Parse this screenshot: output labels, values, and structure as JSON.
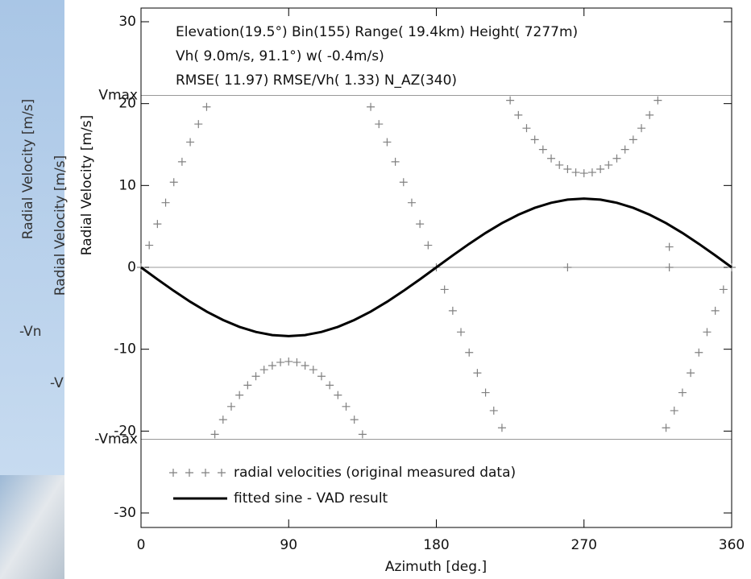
{
  "chart_data": {
    "type": "scatter",
    "xlabel": "Azimuth [deg.]",
    "ylabel": "Radial Velocity [m/s]",
    "annotations": [
      "Elevation(19.5°)  Bin(155)  Range( 19.4km)  Height( 7277m)",
      "Vh( 9.0m/s, 91.1°)  w( -0.4m/s)",
      "RMSE( 11.97) RMSE/Vh( 1.33) N_AZ(340)"
    ],
    "background_texts": [
      "Radial Velocity [m/s]",
      "Radial Velocity [m/s]",
      "-Vn",
      "-V"
    ],
    "reference_lines": [
      {
        "value": 21,
        "label": "Vmax"
      },
      {
        "value": -21,
        "label": "-Vmax"
      },
      {
        "value": 0
      }
    ],
    "xlim": [
      0,
      360
    ],
    "xticks": [
      0,
      90,
      180,
      270,
      360
    ],
    "ylim": [
      -30,
      30
    ],
    "yticks": [
      -30,
      -20,
      -10,
      0,
      10,
      20,
      30
    ],
    "legend": "lower left",
    "series": [
      {
        "name": "radial velocities (original measured data)",
        "color": "#808080",
        "marker": "plus",
        "x": [
          0,
          5,
          10,
          15,
          20,
          25,
          30,
          35,
          40,
          45,
          50,
          55,
          60,
          65,
          70,
          75,
          80,
          85,
          90,
          95,
          100,
          105,
          110,
          115,
          120,
          125,
          130,
          135,
          140,
          145,
          150,
          155,
          160,
          165,
          170,
          175,
          180,
          185,
          190,
          195,
          200,
          205,
          210,
          215,
          220,
          225,
          230,
          235,
          240,
          245,
          250,
          255,
          260,
          265,
          270,
          275,
          280,
          285,
          290,
          295,
          300,
          305,
          310,
          315,
          320,
          325,
          330,
          335,
          340,
          345,
          350,
          355,
          360,
          260,
          322,
          322
        ],
        "values": [
          0,
          2.7,
          5.3,
          7.9,
          10.4,
          12.9,
          15.3,
          17.5,
          19.6,
          -20.4,
          -18.6,
          -17.0,
          -15.6,
          -14.4,
          -13.3,
          -12.5,
          -12.0,
          -11.6,
          -11.5,
          -11.6,
          -12.0,
          -12.5,
          -13.3,
          -14.4,
          -15.6,
          -17.0,
          -18.6,
          -20.4,
          19.6,
          17.5,
          15.3,
          12.9,
          10.4,
          7.9,
          5.3,
          2.7,
          0,
          -2.7,
          -5.3,
          -7.9,
          -10.4,
          -12.9,
          -15.3,
          -17.5,
          -19.6,
          20.4,
          18.6,
          17.0,
          15.6,
          14.4,
          13.3,
          12.5,
          12.0,
          11.6,
          11.5,
          11.6,
          12.0,
          12.5,
          13.3,
          14.4,
          15.6,
          17.0,
          18.6,
          20.4,
          -19.6,
          -17.5,
          -15.3,
          -12.9,
          -10.4,
          -7.9,
          -5.3,
          -2.7,
          0,
          0,
          2.5,
          0
        ]
      },
      {
        "name": "fitted sine - VAD result",
        "color": "#000000",
        "marker": "line",
        "x": [
          0,
          10,
          20,
          30,
          40,
          50,
          60,
          70,
          80,
          90,
          100,
          110,
          120,
          130,
          140,
          150,
          160,
          170,
          180,
          190,
          200,
          210,
          220,
          230,
          240,
          250,
          260,
          270,
          280,
          290,
          300,
          310,
          320,
          330,
          340,
          350,
          360
        ],
        "values": [
          0,
          -1.46,
          -2.87,
          -4.2,
          -5.4,
          -6.43,
          -7.27,
          -7.89,
          -8.27,
          -8.4,
          -8.27,
          -7.89,
          -7.27,
          -6.43,
          -5.4,
          -4.2,
          -2.87,
          -1.46,
          0,
          1.46,
          2.87,
          4.2,
          5.4,
          6.43,
          7.27,
          7.89,
          8.27,
          8.4,
          8.27,
          7.89,
          7.27,
          6.43,
          5.4,
          4.2,
          2.87,
          1.46,
          0
        ]
      }
    ]
  }
}
